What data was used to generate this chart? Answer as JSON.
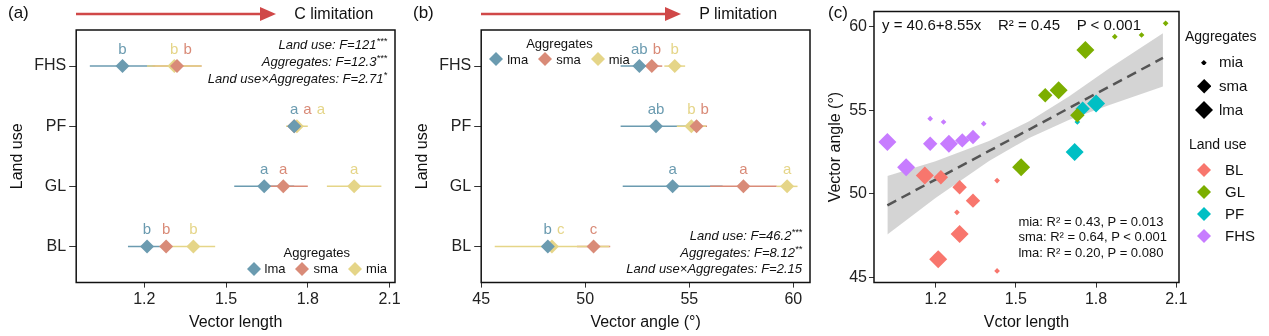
{
  "chart_data": [
    {
      "type": "scatter",
      "orientation": "horizontal",
      "title": "(a)",
      "xlabel": "Vector length",
      "ylabel": "Land use",
      "legend_title": "Aggregates",
      "legend": "bottom right",
      "marker": "diamond",
      "categories": [
        "FHS",
        "PF",
        "GL",
        "BL"
      ],
      "xlim": [
        0.95,
        2.12
      ],
      "xticks": [
        1.2,
        1.5,
        1.8,
        2.1
      ],
      "series": [
        {
          "name": "lma",
          "color": "#6b9bb0",
          "values": [
            1.12,
            1.75,
            1.64,
            1.21
          ],
          "errors": [
            0.12,
            null,
            0.11,
            0.07
          ],
          "value_labels": [
            "b",
            "a",
            "a",
            "b"
          ]
        },
        {
          "name": "sma",
          "color": "#d98b78",
          "values": [
            1.32,
            1.75,
            1.71,
            1.28
          ],
          "errors": [
            0.09,
            null,
            0.09,
            null
          ],
          "value_labels": [
            "b",
            "a",
            "a",
            "b"
          ]
        },
        {
          "name": "mia",
          "color": "#e5d588",
          "values": [
            1.31,
            1.76,
            1.97,
            1.38
          ],
          "errors": [
            0.1,
            0.04,
            0.1,
            0.08
          ],
          "value_labels": [
            "b",
            "a",
            "a",
            "b"
          ]
        }
      ],
      "annotations": [
        "C limitation",
        "Land use: F=121$^{***}$",
        "Aggregates: F=12.3$^{***}$",
        "Land use×Aggregates: F=2.71$^{*}$"
      ]
    },
    {
      "type": "scatter",
      "orientation": "horizontal",
      "title": "(b)",
      "xlabel": "Vector angle (°)",
      "ylabel": "Land use",
      "legend_title": "Aggregates",
      "legend": "top left",
      "marker": "diamond",
      "categories": [
        "FHS",
        "PF",
        "GL",
        "BL"
      ],
      "xlim": [
        45,
        60.8
      ],
      "xticks": [
        45,
        50,
        55,
        60
      ],
      "series": [
        {
          "name": "lma",
          "color": "#6b9bb0",
          "values": [
            52.6,
            53.4,
            54.2,
            48.2
          ],
          "errors": [
            0.9,
            1.7,
            2.4,
            null
          ],
          "value_labels": [
            "ab",
            "ab",
            "a",
            "b"
          ]
        },
        {
          "name": "sma",
          "color": "#d98b78",
          "values": [
            53.2,
            55.35,
            57.6,
            50.4
          ],
          "errors": [
            0.5,
            0.5,
            1.6,
            0.8
          ],
          "value_labels": [
            "b",
            "b",
            "a",
            "c"
          ]
        },
        {
          "name": "mia",
          "color": "#e5d588",
          "values": [
            54.3,
            55.1,
            59.7,
            48.4
          ],
          "errors": [
            0.5,
            0.7,
            0.5,
            2.75
          ],
          "value_labels": [
            "b",
            "b",
            "a",
            "c"
          ]
        }
      ],
      "annotations": [
        "P limitation",
        "Land use: F=46.2$^{***}$",
        "Aggregates: F=8.12$^{**}$",
        "Land use×Aggregates: F=2.15"
      ]
    },
    {
      "type": "bubble",
      "title": "(c)",
      "xlabel": "Vctor length",
      "ylabel": "Vector angle (°)",
      "legend_title": "Land use",
      "legend": "right",
      "marker": "diamond",
      "xlim": [
        0.97,
        2.11
      ],
      "xticks": [
        1.2,
        1.5,
        1.8,
        2.1
      ],
      "ylim": [
        44.7,
        60.9
      ],
      "yticks": [
        45,
        50,
        55,
        60
      ],
      "size_legend": [
        {
          "value": 0.1,
          "label": "mia"
        },
        {
          "value": 0.64,
          "label": "sma"
        },
        {
          "value": 1,
          "label": "lma"
        }
      ],
      "series": [
        {
          "type": "line",
          "color": "#555555",
          "line_style": "dashed",
          "marker": "none",
          "x": [
            1.02,
            1.2,
            1.4,
            1.55,
            1.7,
            1.85,
            2.05
          ],
          "values": [
            49.32,
            50.86,
            52.57,
            53.85,
            55.14,
            56.42,
            58.13
          ],
          "lower": [
            47.57,
            49.76,
            51.97,
            53.35,
            54.44,
            55.32,
            56.43
          ],
          "upper": [
            51.07,
            51.96,
            53.17,
            54.35,
            55.84,
            57.52,
            59.6
          ]
        },
        {
          "name": "BL",
          "color": "#f8766d",
          "x": [
            1.16,
            1.21,
            1.29,
            1.22,
            1.29,
            1.34,
            1.43,
            1.28,
            1.43
          ],
          "values": [
            51.1,
            46.1,
            47.6,
            51.0,
            50.4,
            49.6,
            50.8,
            48.9,
            45.4
          ],
          "sizes": [
            1,
            1,
            1,
            0.64,
            0.64,
            0.64,
            0.1,
            0.1,
            0.1
          ]
        },
        {
          "name": "GL",
          "color": "#7cae00",
          "x": [
            2.06,
            1.87,
            1.97,
            1.76,
            1.61,
            1.73,
            1.66,
            1.52
          ],
          "values": [
            60.2,
            59.4,
            59.5,
            58.6,
            55.9,
            54.7,
            56.2,
            51.6
          ],
          "sizes": [
            0.1,
            0.1,
            0.1,
            1,
            0.64,
            0.64,
            1,
            1
          ]
        },
        {
          "name": "PF",
          "color": "#00bfc4",
          "x": [
            1.73,
            1.8,
            1.75,
            1.72
          ],
          "values": [
            54.3,
            55.4,
            55.1,
            52.5
          ],
          "sizes": [
            0.1,
            1,
            0.64,
            1
          ]
        },
        {
          "name": "FHS",
          "color": "#c77cff",
          "x": [
            1.18,
            1.23,
            1.38,
            1.18,
            1.3,
            1.34,
            1.02,
            1.09,
            1.25
          ],
          "values": [
            54.5,
            54.3,
            54.2,
            53.0,
            53.2,
            53.4,
            53.1,
            51.6,
            53.0
          ],
          "sizes": [
            0.1,
            0.1,
            0.1,
            0.64,
            0.64,
            0.64,
            1,
            1,
            1
          ]
        }
      ],
      "annotations": [
        "y = 40.6+8.55x    R² = 0.45    P < 0.001",
        "Aggregates",
        "mia: R² = 0.43, P = 0.013",
        "sma: R² = 0.64, P < 0.001",
        "lma: R² = 0.20, P = 0.080"
      ]
    }
  ]
}
